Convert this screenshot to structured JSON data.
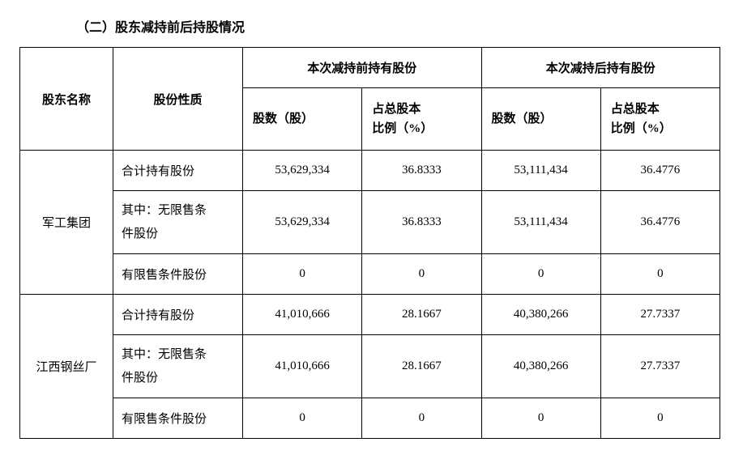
{
  "title": "（二）股东减持前后持股情况",
  "headers": {
    "shareholder_name": "股东名称",
    "share_type": "股份性质",
    "before_group": "本次减持前持有股份",
    "after_group": "本次减持后持有股份",
    "shares_count_line1": "股数（股）",
    "pct_line1": "占总股本",
    "pct_line2": "比例（%）"
  },
  "share_type_labels": {
    "total": "合计持有股份",
    "unrestricted_line1": "其中：无限售条",
    "unrestricted_line2": "件股份",
    "restricted": "有限售条件股份"
  },
  "shareholders": [
    {
      "name": "军工集团",
      "rows": {
        "total": {
          "before_shares": "53,629,334",
          "before_pct": "36.8333",
          "after_shares": "53,111,434",
          "after_pct": "36.4776"
        },
        "unrestricted": {
          "before_shares": "53,629,334",
          "before_pct": "36.8333",
          "after_shares": "53,111,434",
          "after_pct": "36.4776"
        },
        "restricted": {
          "before_shares": "0",
          "before_pct": "0",
          "after_shares": "0",
          "after_pct": "0"
        }
      }
    },
    {
      "name": "江西钢丝厂",
      "rows": {
        "total": {
          "before_shares": "41,010,666",
          "before_pct": "28.1667",
          "after_shares": "40,380,266",
          "after_pct": "27.7337"
        },
        "unrestricted": {
          "before_shares": "41,010,666",
          "before_pct": "28.1667",
          "after_shares": "40,380,266",
          "after_pct": "27.7337"
        },
        "restricted": {
          "before_shares": "0",
          "before_pct": "0",
          "after_shares": "0",
          "after_pct": "0"
        }
      }
    }
  ]
}
